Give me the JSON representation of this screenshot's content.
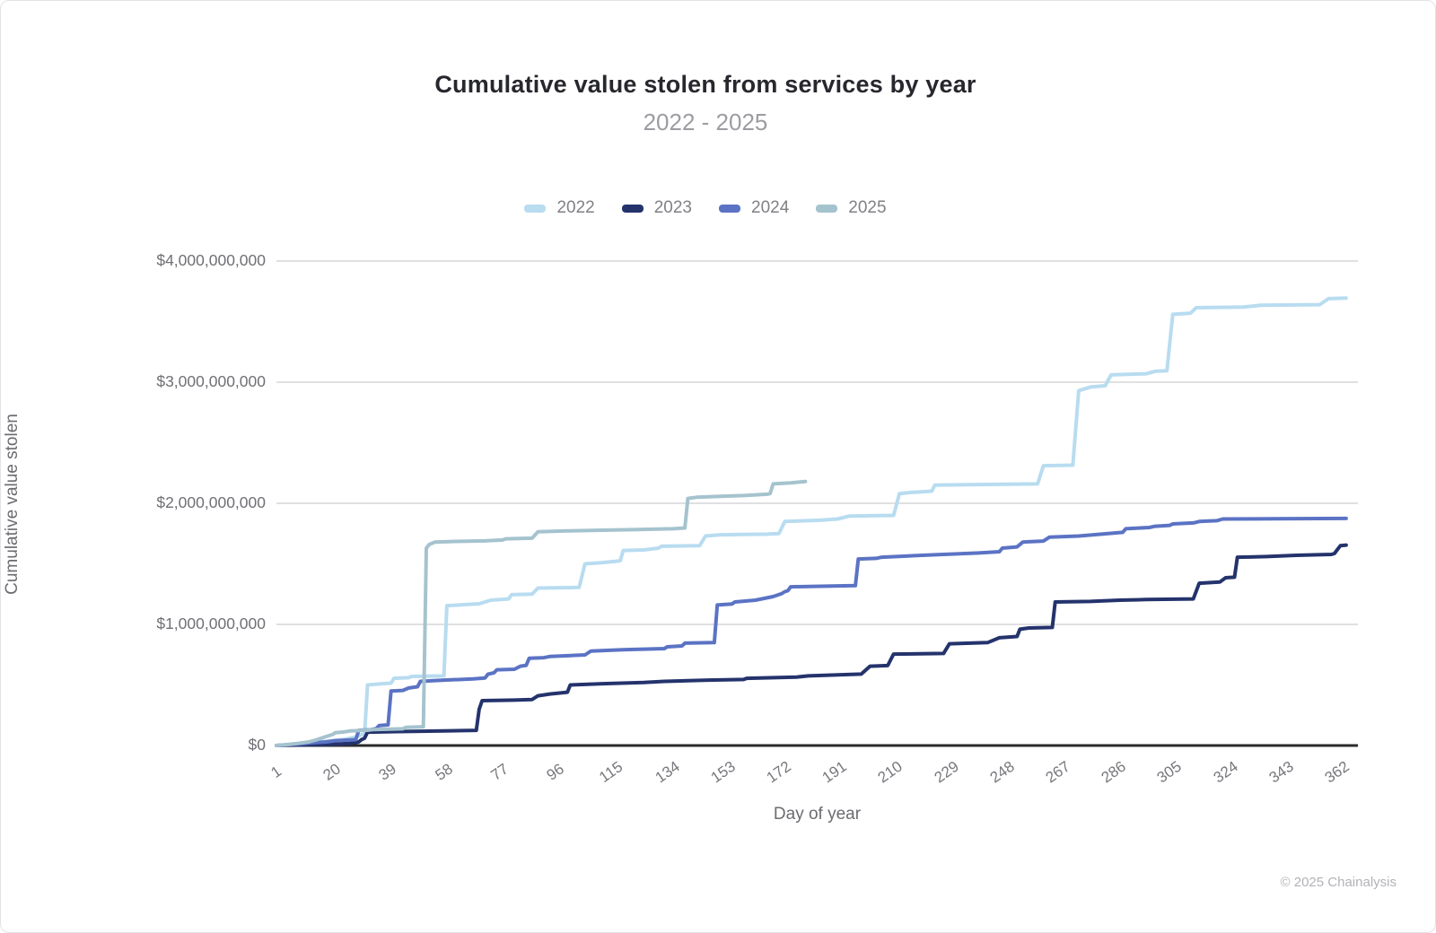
{
  "page": {
    "footer": "© 2025 Chainalysis"
  },
  "chart_data": {
    "type": "line",
    "title": "Cumulative value stolen from services by year",
    "subtitle": "2022 - 2025",
    "xlabel": "Day of year",
    "ylabel": "Cumulative value stolen",
    "unit": "USD",
    "value_scale": "billions",
    "line_style": "step-cumulative",
    "grid": "horizontal",
    "legend_position": "top",
    "xlim": [
      1,
      369
    ],
    "ylim_billions": [
      0,
      4
    ],
    "x_ticks": [
      1,
      20,
      39,
      58,
      77,
      96,
      115,
      134,
      153,
      172,
      191,
      210,
      229,
      248,
      267,
      286,
      305,
      324,
      343,
      362
    ],
    "y_ticks": [
      {
        "value_billions": 0,
        "label": "$0"
      },
      {
        "value_billions": 1,
        "label": "$1,000,000,000"
      },
      {
        "value_billions": 2,
        "label": "$2,000,000,000"
      },
      {
        "value_billions": 3,
        "label": "$3,000,000,000"
      },
      {
        "value_billions": 4,
        "label": "$4,000,000,000"
      }
    ],
    "axis_colors": {
      "baseline": "#2b2b2e",
      "gridline": "#d6d6d8"
    },
    "series": [
      {
        "name": "2022",
        "color": "#b8dcf0",
        "points": [
          [
            1,
            0
          ],
          [
            6,
            0.01
          ],
          [
            12,
            0.02
          ],
          [
            18,
            0.035
          ],
          [
            24,
            0.05
          ],
          [
            28,
            0.07
          ],
          [
            30,
            0.09
          ],
          [
            31,
            0.095
          ],
          [
            32,
            0.5
          ],
          [
            37,
            0.51
          ],
          [
            40,
            0.515
          ],
          [
            41,
            0.555
          ],
          [
            46,
            0.56
          ],
          [
            47,
            0.57
          ],
          [
            58,
            0.575
          ],
          [
            59,
            1.155
          ],
          [
            63,
            1.16
          ],
          [
            70,
            1.17
          ],
          [
            74,
            1.2
          ],
          [
            80,
            1.21
          ],
          [
            81,
            1.245
          ],
          [
            88,
            1.25
          ],
          [
            90,
            1.3
          ],
          [
            104,
            1.305
          ],
          [
            106,
            1.5
          ],
          [
            112,
            1.51
          ],
          [
            118,
            1.525
          ],
          [
            119,
            1.61
          ],
          [
            126,
            1.615
          ],
          [
            131,
            1.63
          ],
          [
            132,
            1.645
          ],
          [
            145,
            1.65
          ],
          [
            147,
            1.73
          ],
          [
            152,
            1.74
          ],
          [
            168,
            1.745
          ],
          [
            172,
            1.75
          ],
          [
            174,
            1.85
          ],
          [
            186,
            1.86
          ],
          [
            192,
            1.87
          ],
          [
            196,
            1.895
          ],
          [
            211,
            1.9
          ],
          [
            213,
            2.08
          ],
          [
            217,
            2.09
          ],
          [
            224,
            2.1
          ],
          [
            225,
            2.15
          ],
          [
            240,
            2.155
          ],
          [
            260,
            2.16
          ],
          [
            262,
            2.31
          ],
          [
            272,
            2.315
          ],
          [
            274,
            2.93
          ],
          [
            278,
            2.96
          ],
          [
            283,
            2.97
          ],
          [
            285,
            3.06
          ],
          [
            297,
            3.07
          ],
          [
            300,
            3.09
          ],
          [
            304,
            3.095
          ],
          [
            306,
            3.56
          ],
          [
            312,
            3.57
          ],
          [
            314,
            3.615
          ],
          [
            330,
            3.62
          ],
          [
            336,
            3.635
          ],
          [
            356,
            3.64
          ],
          [
            359,
            3.69
          ],
          [
            365,
            3.695
          ]
        ]
      },
      {
        "name": "2023",
        "color": "#24336c",
        "points": [
          [
            1,
            0
          ],
          [
            12,
            0.005
          ],
          [
            22,
            0.012
          ],
          [
            26,
            0.018
          ],
          [
            29,
            0.03
          ],
          [
            30,
            0.05
          ],
          [
            31,
            0.06
          ],
          [
            32,
            0.11
          ],
          [
            42,
            0.115
          ],
          [
            58,
            0.12
          ],
          [
            69,
            0.125
          ],
          [
            70,
            0.3
          ],
          [
            71,
            0.37
          ],
          [
            82,
            0.375
          ],
          [
            88,
            0.38
          ],
          [
            90,
            0.41
          ],
          [
            94,
            0.425
          ],
          [
            100,
            0.44
          ],
          [
            101,
            0.5
          ],
          [
            112,
            0.51
          ],
          [
            126,
            0.52
          ],
          [
            133,
            0.53
          ],
          [
            148,
            0.54
          ],
          [
            160,
            0.545
          ],
          [
            161,
            0.555
          ],
          [
            178,
            0.565
          ],
          [
            182,
            0.575
          ],
          [
            200,
            0.59
          ],
          [
            203,
            0.655
          ],
          [
            209,
            0.66
          ],
          [
            211,
            0.755
          ],
          [
            228,
            0.76
          ],
          [
            230,
            0.84
          ],
          [
            243,
            0.85
          ],
          [
            247,
            0.89
          ],
          [
            253,
            0.9
          ],
          [
            254,
            0.96
          ],
          [
            257,
            0.97
          ],
          [
            265,
            0.975
          ],
          [
            266,
            1.185
          ],
          [
            278,
            1.19
          ],
          [
            288,
            1.2
          ],
          [
            297,
            1.205
          ],
          [
            313,
            1.21
          ],
          [
            315,
            1.34
          ],
          [
            322,
            1.35
          ],
          [
            324,
            1.385
          ],
          [
            327,
            1.39
          ],
          [
            328,
            1.555
          ],
          [
            338,
            1.56
          ],
          [
            348,
            1.57
          ],
          [
            360,
            1.578
          ],
          [
            361,
            1.585
          ],
          [
            363,
            1.65
          ],
          [
            365,
            1.655
          ]
        ]
      },
      {
        "name": "2024",
        "color": "#5b73c4",
        "points": [
          [
            1,
            0
          ],
          [
            6,
            0.008
          ],
          [
            12,
            0.02
          ],
          [
            18,
            0.03
          ],
          [
            21,
            0.04
          ],
          [
            28,
            0.048
          ],
          [
            29,
            0.125
          ],
          [
            33,
            0.13
          ],
          [
            35,
            0.14
          ],
          [
            36,
            0.165
          ],
          [
            39,
            0.17
          ],
          [
            40,
            0.45
          ],
          [
            44,
            0.455
          ],
          [
            46,
            0.475
          ],
          [
            49,
            0.485
          ],
          [
            50,
            0.53
          ],
          [
            58,
            0.54
          ],
          [
            68,
            0.55
          ],
          [
            72,
            0.558
          ],
          [
            73,
            0.59
          ],
          [
            75,
            0.6
          ],
          [
            76,
            0.625
          ],
          [
            82,
            0.63
          ],
          [
            84,
            0.655
          ],
          [
            86,
            0.662
          ],
          [
            87,
            0.72
          ],
          [
            92,
            0.725
          ],
          [
            94,
            0.735
          ],
          [
            106,
            0.748
          ],
          [
            108,
            0.78
          ],
          [
            116,
            0.788
          ],
          [
            120,
            0.792
          ],
          [
            133,
            0.8
          ],
          [
            134,
            0.815
          ],
          [
            139,
            0.822
          ],
          [
            140,
            0.845
          ],
          [
            150,
            0.85
          ],
          [
            151,
            1.16
          ],
          [
            156,
            1.168
          ],
          [
            157,
            1.185
          ],
          [
            164,
            1.2
          ],
          [
            170,
            1.23
          ],
          [
            173,
            1.255
          ],
          [
            174,
            1.27
          ],
          [
            175,
            1.278
          ],
          [
            176,
            1.31
          ],
          [
            186,
            1.315
          ],
          [
            198,
            1.32
          ],
          [
            199,
            1.54
          ],
          [
            205,
            1.545
          ],
          [
            207,
            1.555
          ],
          [
            216,
            1.565
          ],
          [
            228,
            1.578
          ],
          [
            240,
            1.59
          ],
          [
            247,
            1.6
          ],
          [
            248,
            1.63
          ],
          [
            253,
            1.64
          ],
          [
            255,
            1.68
          ],
          [
            262,
            1.688
          ],
          [
            264,
            1.72
          ],
          [
            274,
            1.73
          ],
          [
            284,
            1.75
          ],
          [
            289,
            1.76
          ],
          [
            290,
            1.79
          ],
          [
            298,
            1.8
          ],
          [
            300,
            1.81
          ],
          [
            305,
            1.818
          ],
          [
            306,
            1.83
          ],
          [
            313,
            1.838
          ],
          [
            315,
            1.85
          ],
          [
            321,
            1.856
          ],
          [
            323,
            1.87
          ],
          [
            340,
            1.872
          ],
          [
            365,
            1.875
          ]
        ]
      },
      {
        "name": "2025",
        "color": "#a5c3ce",
        "points": [
          [
            1,
            0
          ],
          [
            4,
            0.006
          ],
          [
            8,
            0.016
          ],
          [
            12,
            0.03
          ],
          [
            15,
            0.05
          ],
          [
            18,
            0.075
          ],
          [
            20,
            0.09
          ],
          [
            21,
            0.105
          ],
          [
            24,
            0.112
          ],
          [
            26,
            0.12
          ],
          [
            32,
            0.126
          ],
          [
            34,
            0.132
          ],
          [
            44,
            0.138
          ],
          [
            45,
            0.15
          ],
          [
            51,
            0.155
          ],
          [
            52,
            1.63
          ],
          [
            53,
            1.66
          ],
          [
            55,
            1.68
          ],
          [
            62,
            1.685
          ],
          [
            72,
            1.69
          ],
          [
            78,
            1.697
          ],
          [
            79,
            1.707
          ],
          [
            88,
            1.712
          ],
          [
            90,
            1.765
          ],
          [
            100,
            1.772
          ],
          [
            112,
            1.778
          ],
          [
            124,
            1.784
          ],
          [
            136,
            1.79
          ],
          [
            140,
            1.796
          ],
          [
            141,
            2.04
          ],
          [
            144,
            2.05
          ],
          [
            152,
            2.057
          ],
          [
            160,
            2.064
          ],
          [
            168,
            2.075
          ],
          [
            169,
            2.08
          ],
          [
            170,
            2.16
          ],
          [
            176,
            2.168
          ],
          [
            181,
            2.18
          ]
        ]
      }
    ]
  }
}
